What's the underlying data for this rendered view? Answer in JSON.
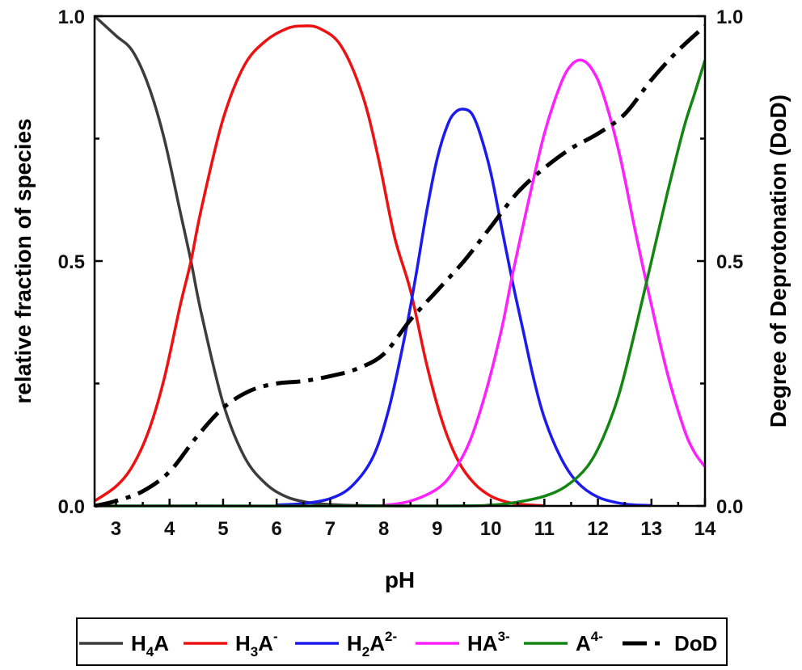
{
  "chart_data": {
    "type": "line",
    "xlabel": "pH",
    "ylabel": "relative fraction of species",
    "y2label": "Degree of Deprotonation (DoD)",
    "xlim": [
      2.6,
      14
    ],
    "ylim": [
      0,
      1
    ],
    "y2lim": [
      0,
      1
    ],
    "x_ticks": [
      3,
      4,
      5,
      6,
      7,
      8,
      9,
      10,
      11,
      12,
      13,
      14
    ],
    "y_ticks": [
      0.0,
      0.5,
      1.0
    ],
    "y_tick_labels": [
      "0.0",
      "0.5",
      "1.0"
    ],
    "y2_ticks": [
      0.0,
      0.5,
      1.0
    ],
    "y2_tick_labels": [
      "0.0",
      "0.5",
      "1.0"
    ],
    "grid": false,
    "legend_position": "bottom",
    "series": [
      {
        "legend": {
          "base": "H",
          "sub1": "4",
          "mid": "A",
          "sup": ""
        },
        "color": "#3c3c3c",
        "dash": "solid",
        "axis": "left",
        "x": [
          2.6,
          3.0,
          3.3,
          3.6,
          3.9,
          4.2,
          4.4,
          4.6,
          5.0,
          5.4,
          5.8,
          6.2,
          6.6,
          7.0,
          7.5,
          8.0,
          8.5
        ],
        "y": [
          1.0,
          0.96,
          0.93,
          0.86,
          0.75,
          0.6,
          0.5,
          0.39,
          0.21,
          0.1,
          0.045,
          0.018,
          0.007,
          0.003,
          0.001,
          0.0003,
          0.0
        ]
      },
      {
        "legend": {
          "base": "H",
          "sub1": "3",
          "mid": "A",
          "sup": "-"
        },
        "color": "#ee1111",
        "dash": "solid",
        "axis": "left",
        "x": [
          2.6,
          3.0,
          3.3,
          3.6,
          3.9,
          4.2,
          4.4,
          4.6,
          5.0,
          5.4,
          5.8,
          6.2,
          6.5,
          6.8,
          7.2,
          7.6,
          7.9,
          8.2,
          8.5,
          8.8,
          9.1,
          9.4,
          9.7,
          10.0,
          10.3,
          10.6,
          11.0
        ],
        "y": [
          0.01,
          0.04,
          0.08,
          0.15,
          0.26,
          0.41,
          0.5,
          0.61,
          0.79,
          0.9,
          0.95,
          0.975,
          0.98,
          0.975,
          0.94,
          0.84,
          0.71,
          0.55,
          0.44,
          0.29,
          0.17,
          0.09,
          0.045,
          0.02,
          0.008,
          0.003,
          0.0005
        ]
      },
      {
        "legend": {
          "base": "H",
          "sub1": "2",
          "mid": "A",
          "sup": "2-"
        },
        "color": "#1b1bee",
        "dash": "solid",
        "axis": "left",
        "x": [
          6.0,
          6.5,
          7.0,
          7.4,
          7.8,
          8.1,
          8.4,
          8.6,
          8.8,
          9.0,
          9.2,
          9.35,
          9.5,
          9.65,
          9.8,
          10.0,
          10.2,
          10.4,
          10.6,
          10.8,
          11.0,
          11.3,
          11.6,
          12.0,
          12.5,
          13.0
        ],
        "y": [
          0.002,
          0.005,
          0.015,
          0.04,
          0.1,
          0.2,
          0.35,
          0.47,
          0.6,
          0.71,
          0.78,
          0.805,
          0.81,
          0.8,
          0.76,
          0.68,
          0.57,
          0.46,
          0.36,
          0.26,
          0.18,
          0.1,
          0.05,
          0.018,
          0.004,
          0.001
        ]
      },
      {
        "legend": {
          "base": "HA",
          "sub1": "",
          "mid": "",
          "sup": "3-"
        },
        "color": "#ff1fff",
        "dash": "solid",
        "axis": "left",
        "x": [
          8.0,
          8.5,
          9.0,
          9.3,
          9.6,
          9.9,
          10.2,
          10.4,
          10.7,
          11.0,
          11.3,
          11.5,
          11.7,
          11.9,
          12.1,
          12.4,
          12.7,
          13.0,
          13.3,
          13.6,
          13.8,
          14.0
        ],
        "y": [
          0.001,
          0.01,
          0.035,
          0.07,
          0.13,
          0.23,
          0.36,
          0.47,
          0.62,
          0.76,
          0.86,
          0.9,
          0.91,
          0.89,
          0.84,
          0.72,
          0.56,
          0.41,
          0.27,
          0.16,
          0.11,
          0.08
        ]
      },
      {
        "legend": {
          "base": "A",
          "sub1": "",
          "mid": "",
          "sup": "4-"
        },
        "color": "#138513",
        "dash": "solid",
        "axis": "left",
        "x": [
          2.6,
          9.0,
          10.0,
          10.5,
          11.0,
          11.4,
          11.8,
          12.1,
          12.4,
          12.7,
          13.0,
          13.3,
          13.6,
          13.8,
          14.0
        ],
        "y": [
          0.0,
          0.0,
          0.002,
          0.008,
          0.02,
          0.04,
          0.08,
          0.14,
          0.23,
          0.36,
          0.5,
          0.64,
          0.77,
          0.84,
          0.91
        ]
      },
      {
        "legend": {
          "base": "DoD",
          "sub1": "",
          "mid": "",
          "sup": ""
        },
        "color": "#000000",
        "dash": "dashdot",
        "axis": "right",
        "x": [
          2.6,
          3.0,
          3.5,
          4.0,
          4.5,
          5.0,
          5.5,
          6.0,
          6.5,
          7.0,
          7.5,
          8.0,
          8.5,
          9.0,
          9.5,
          10.0,
          10.5,
          11.0,
          11.5,
          12.0,
          12.5,
          13.0,
          13.5,
          14.0
        ],
        "y": [
          0.0,
          0.01,
          0.03,
          0.07,
          0.14,
          0.2,
          0.235,
          0.25,
          0.255,
          0.265,
          0.28,
          0.31,
          0.38,
          0.44,
          0.5,
          0.57,
          0.64,
          0.69,
          0.73,
          0.76,
          0.8,
          0.87,
          0.93,
          0.98
        ]
      }
    ]
  }
}
